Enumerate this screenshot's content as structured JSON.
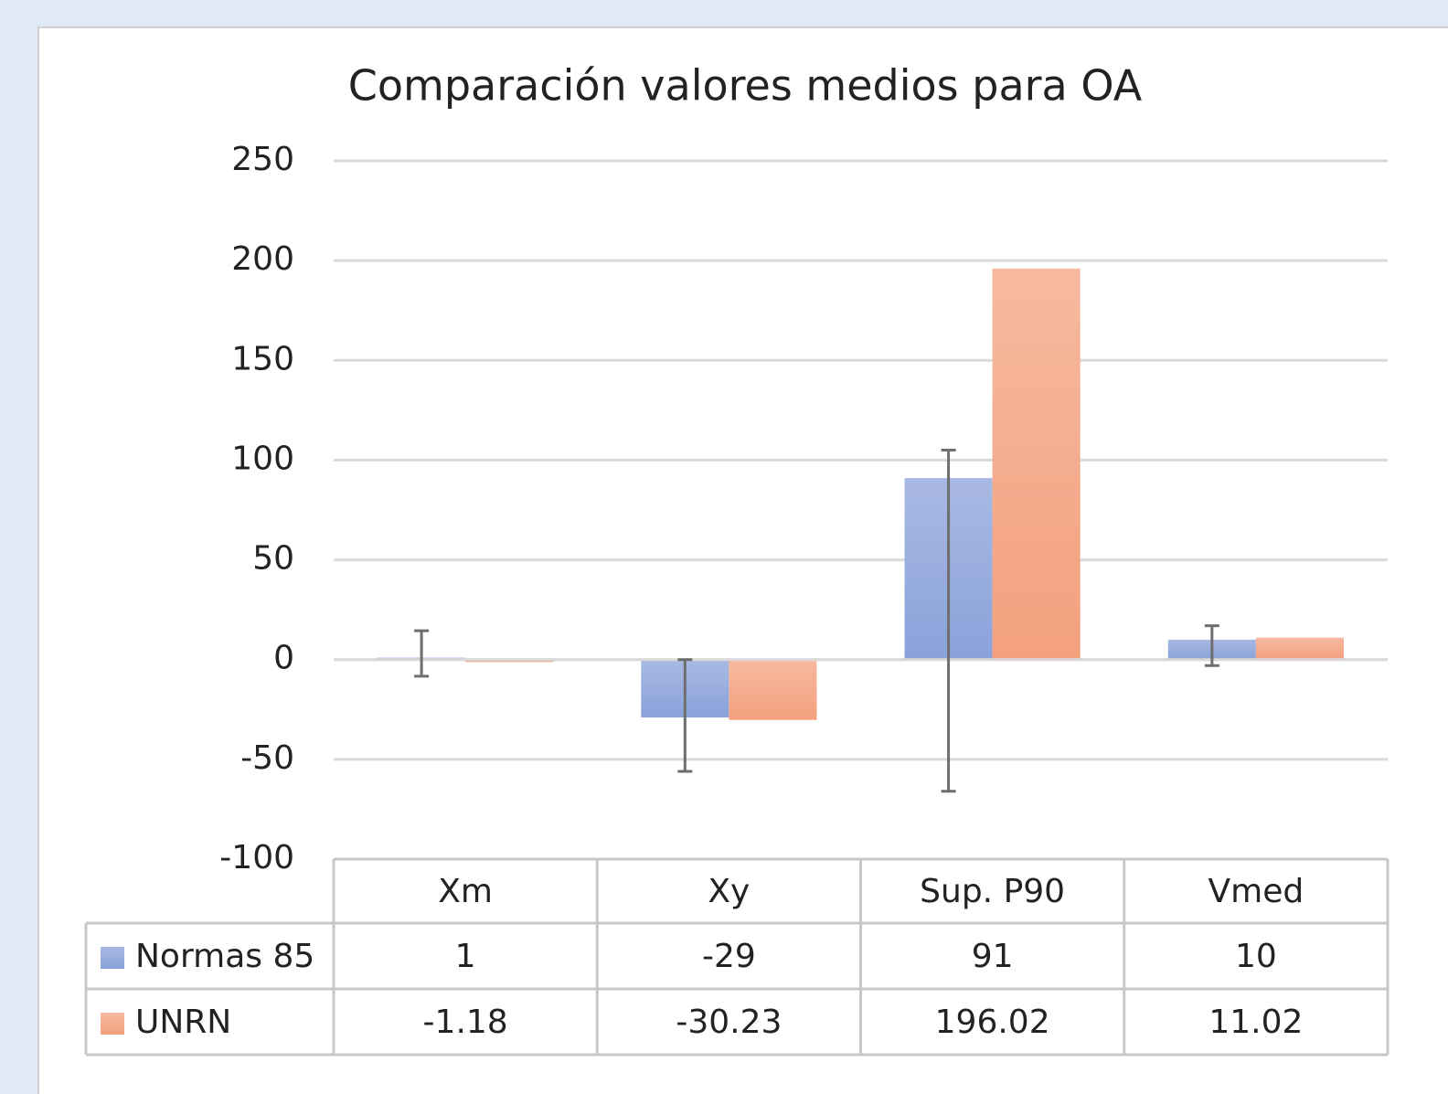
{
  "chart_data": {
    "type": "bar",
    "title": "Comparación valores medios para OA",
    "categories": [
      "Xm",
      "Xy",
      "Sup. P90",
      "Vmed"
    ],
    "series": [
      {
        "name": "Normas 85",
        "color": "#8fa5db",
        "values": [
          1,
          -29,
          91,
          10
        ],
        "err_plus": [
          13.5,
          29,
          14,
          7
        ],
        "err_minus": [
          9.3,
          27,
          157,
          13
        ]
      },
      {
        "name": "UNRN",
        "color": "#f4a482",
        "values": [
          -1.18,
          -30.23,
          196.02,
          11.02
        ]
      }
    ],
    "ylim": [
      -100,
      250
    ],
    "yticks": [
      -100,
      -50,
      0,
      50,
      100,
      150,
      200,
      250
    ],
    "grid": true,
    "data_table": true
  }
}
